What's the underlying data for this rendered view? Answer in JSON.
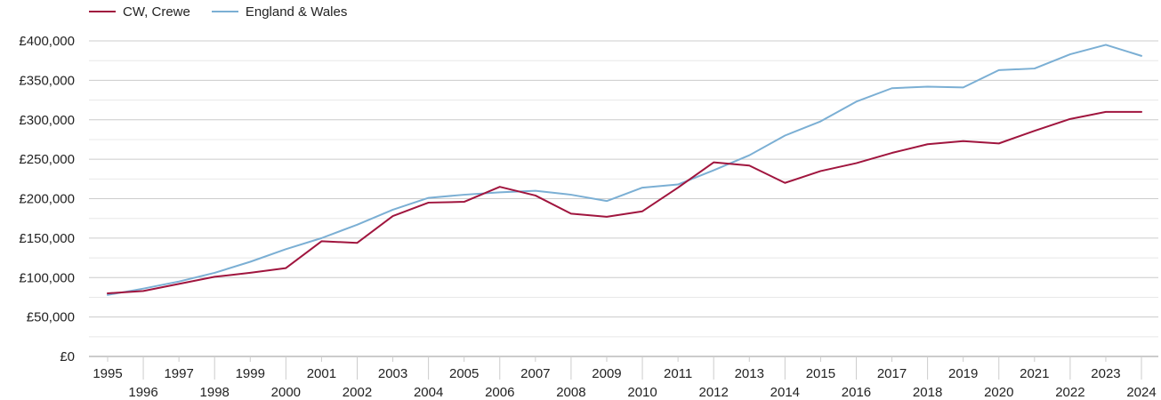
{
  "chart_data": {
    "type": "line",
    "title": "",
    "xlabel": "",
    "ylabel": "",
    "ylim": [
      0,
      400000
    ],
    "grid": true,
    "legend_position": "top-left",
    "y_ticks": [
      "£0",
      "£50,000",
      "£100,000",
      "£150,000",
      "£200,000",
      "£250,000",
      "£300,000",
      "£350,000",
      "£400,000"
    ],
    "x": [
      "1995",
      "1996",
      "1997",
      "1998",
      "1999",
      "2000",
      "2001",
      "2002",
      "2003",
      "2004",
      "2005",
      "2006",
      "2007",
      "2008",
      "2009",
      "2010",
      "2011",
      "2012",
      "2013",
      "2014",
      "2015",
      "2016",
      "2017",
      "2018",
      "2019",
      "2020",
      "2021",
      "2022",
      "2023",
      "2024"
    ],
    "series": [
      {
        "name": "CW, Crewe",
        "color": "#a0153e",
        "values": [
          80000,
          83000,
          92000,
          101000,
          106000,
          112000,
          146000,
          144000,
          178000,
          195000,
          196000,
          215000,
          204000,
          181000,
          177000,
          184000,
          214000,
          246000,
          242000,
          220000,
          235000,
          245000,
          258000,
          269000,
          273000,
          270000,
          286000,
          301000,
          310000,
          310000
        ]
      },
      {
        "name": "England & Wales",
        "color": "#7bafd4",
        "values": [
          78000,
          86000,
          95000,
          106000,
          120000,
          136000,
          150000,
          167000,
          186000,
          201000,
          205000,
          208000,
          210000,
          205000,
          197000,
          214000,
          218000,
          236000,
          255000,
          280000,
          298000,
          323000,
          340000,
          342000,
          341000,
          363000,
          365000,
          383000,
          395000,
          381000
        ]
      }
    ]
  }
}
